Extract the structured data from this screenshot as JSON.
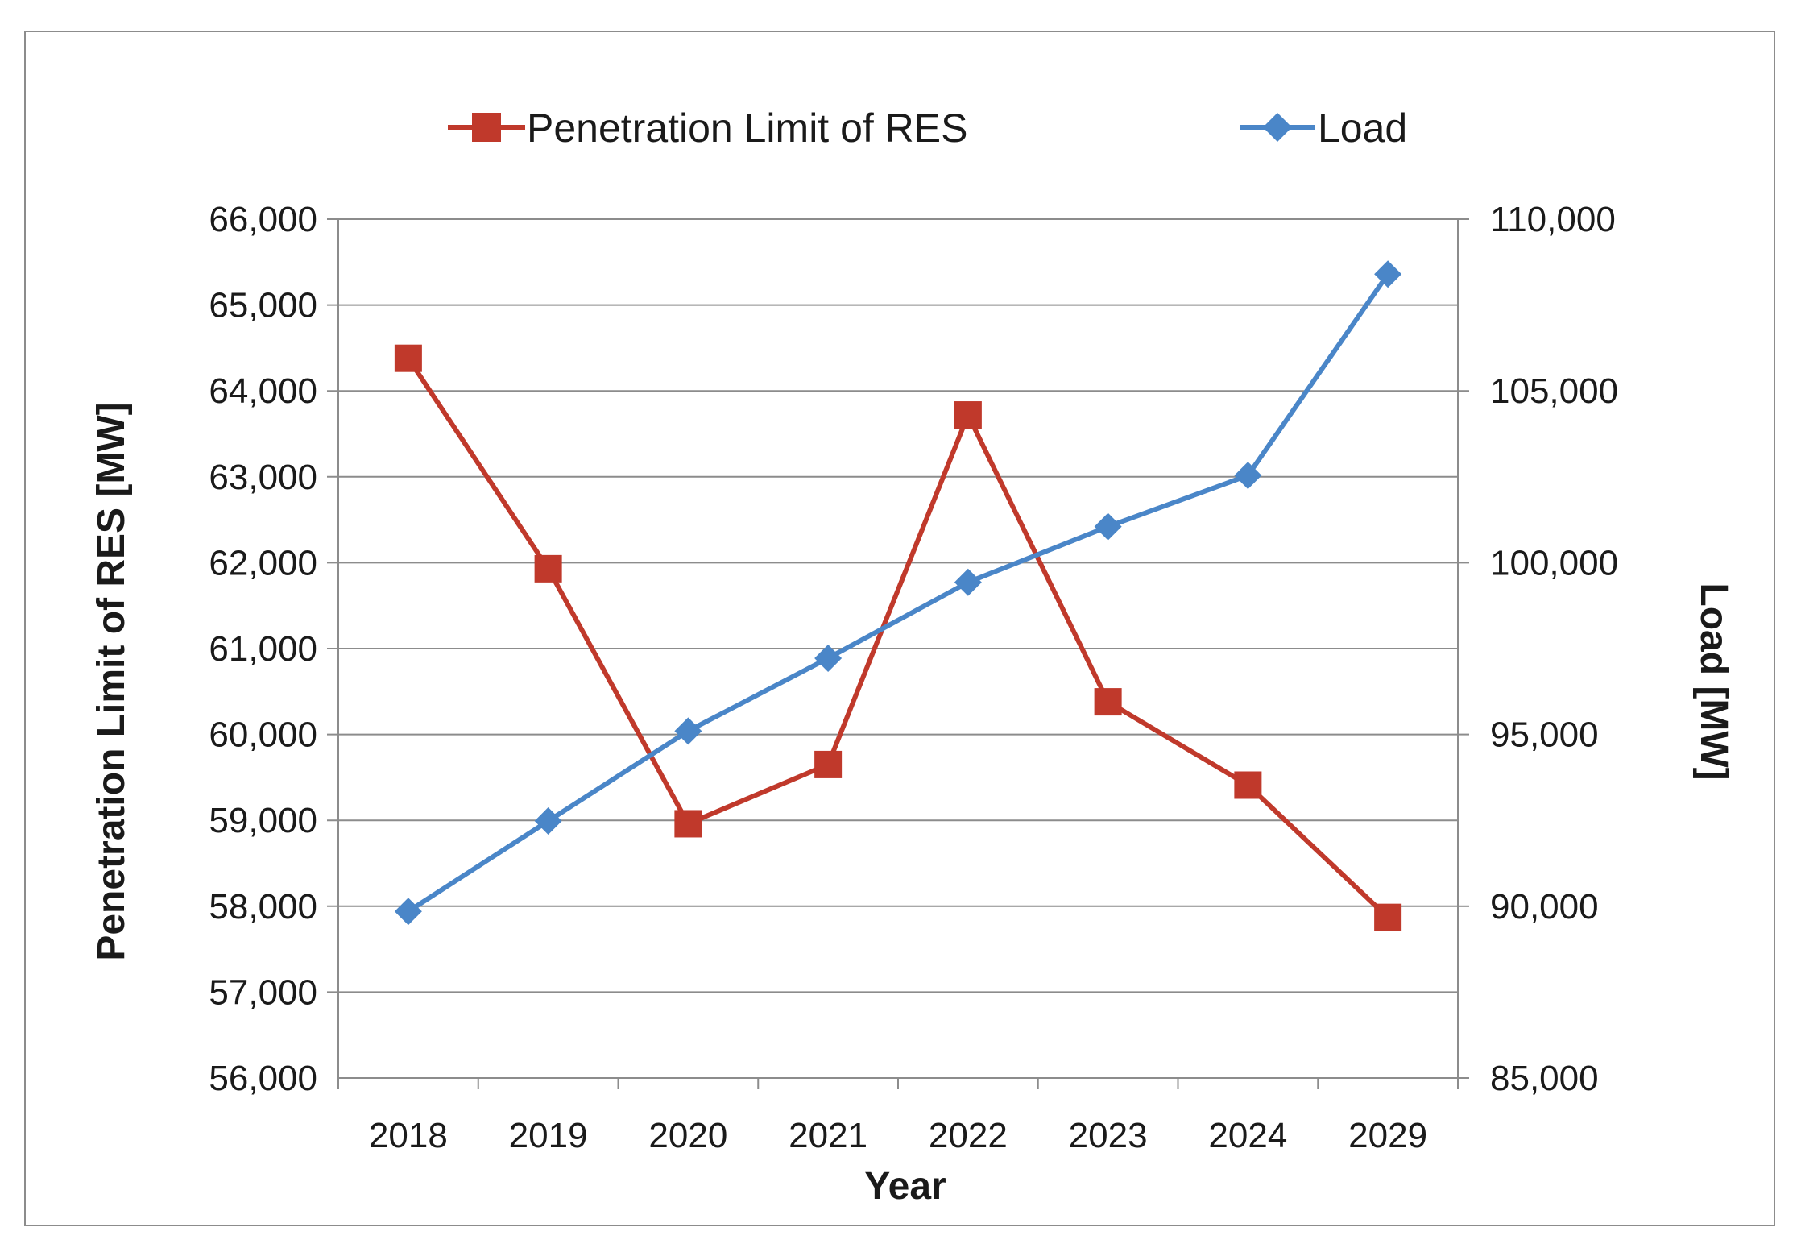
{
  "chart_data": {
    "type": "line",
    "title": "",
    "categories": [
      "2018",
      "2019",
      "2020",
      "2021",
      "2022",
      "2023",
      "2024",
      "2029"
    ],
    "xlabel": "Year",
    "ylabel": "Penetration Limit of RES [MW]",
    "y2label": "Load [MW]",
    "ylim": [
      56000,
      66000
    ],
    "y2lim": [
      85000,
      110000
    ],
    "yticks": [
      "56,000",
      "57,000",
      "58,000",
      "59,000",
      "60,000",
      "61,000",
      "62,000",
      "63,000",
      "64,000",
      "65,000",
      "66,000"
    ],
    "y2ticks": [
      "85,000",
      "90,000",
      "95,000",
      "100,000",
      "105,000",
      "110,000"
    ],
    "grid": true,
    "legend": "top",
    "series": [
      {
        "name": "Penetration Limit of RES",
        "axis": "left",
        "color": "#c0392b",
        "marker": "square",
        "values": [
          64380,
          61930,
          58960,
          59650,
          63720,
          60380,
          59410,
          57870
        ]
      },
      {
        "name": "Load",
        "axis": "right",
        "color": "#4a86c8",
        "marker": "diamond",
        "values": [
          89850,
          92480,
          95100,
          97220,
          99430,
          101050,
          102540,
          108400
        ]
      }
    ]
  }
}
